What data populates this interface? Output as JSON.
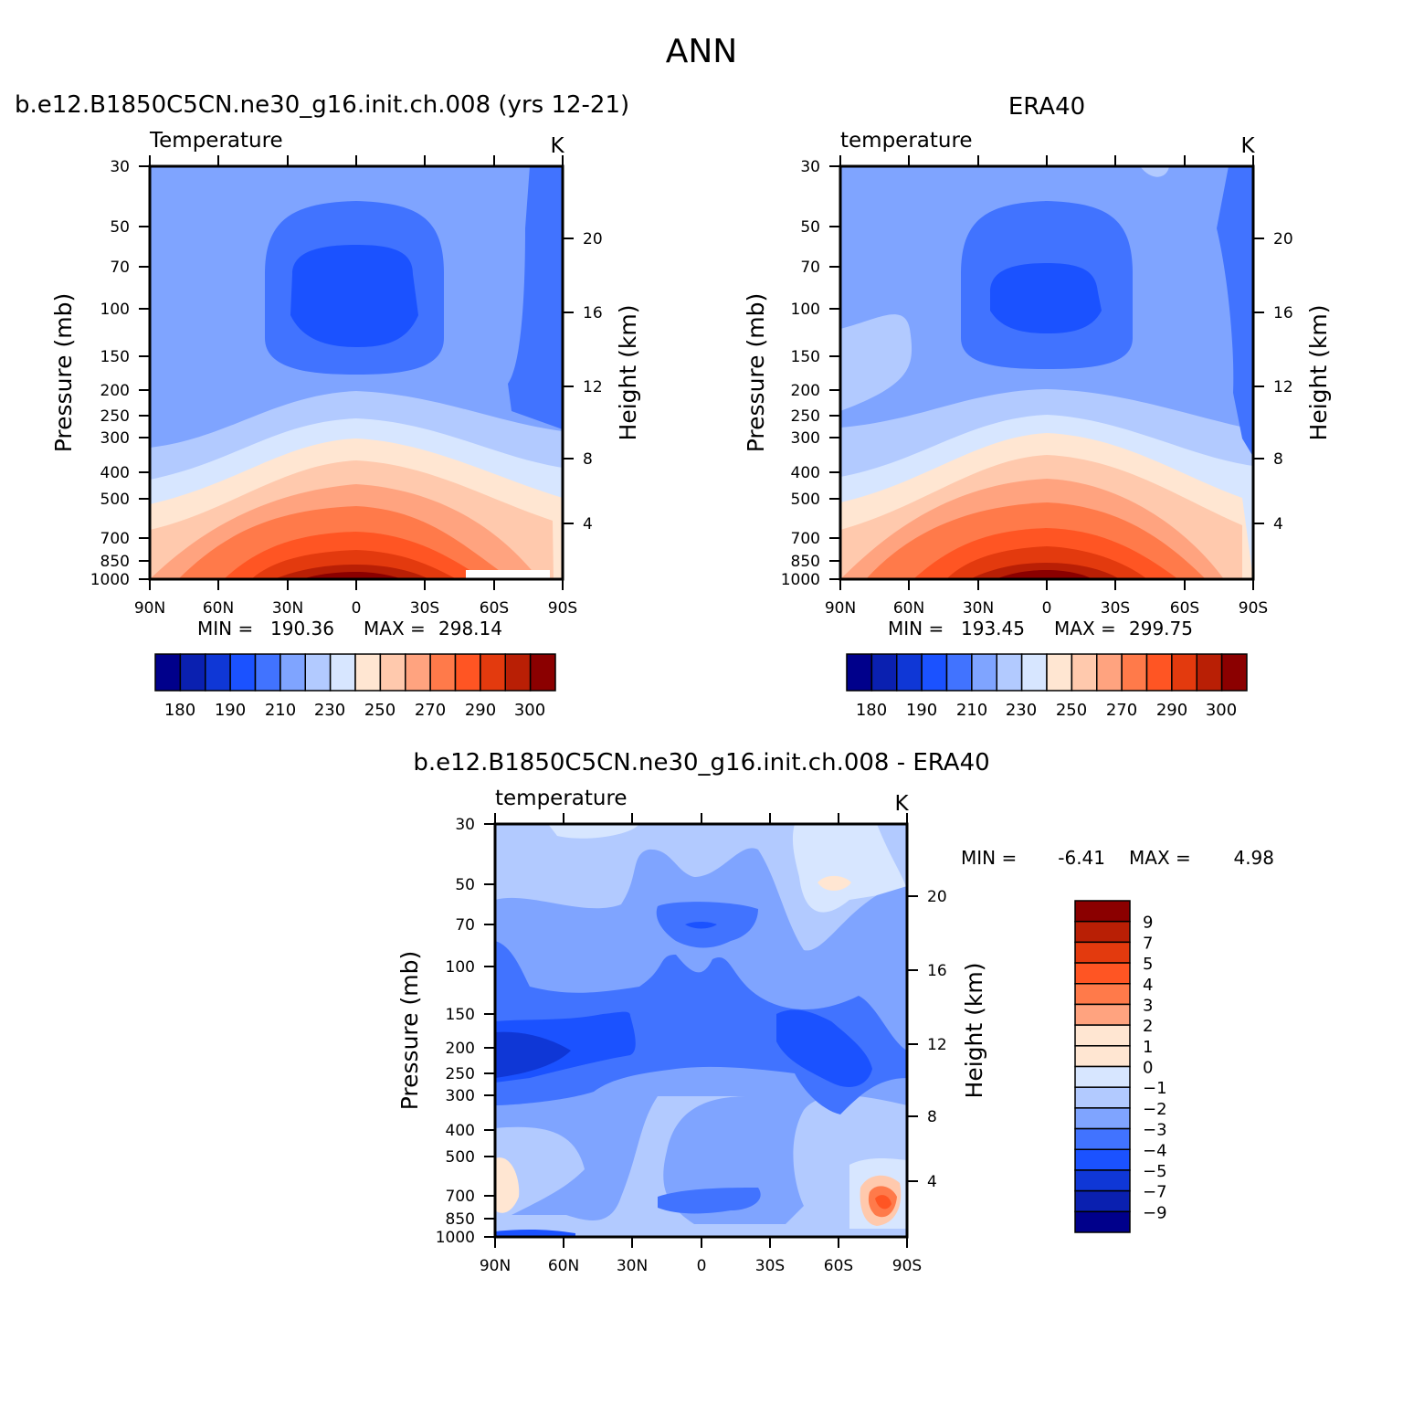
{
  "figure": {
    "title": "ANN"
  },
  "chart_data": [
    {
      "type": "heatmap",
      "title": "b.e12.B1850C5CN.ne30_g16.init.ch.008 (yrs 12-21)",
      "variable_label": "Temperature",
      "units": "K",
      "ylabel": "Pressure (mb)",
      "y2label": "Height (km)",
      "x_ticks": [
        "90N",
        "60N",
        "30N",
        "0",
        "30S",
        "60S",
        "90S"
      ],
      "y_ticks": [
        "30",
        "50",
        "70",
        "100",
        "150",
        "200",
        "250",
        "300",
        "400",
        "500",
        "700",
        "850",
        "1000"
      ],
      "y2_ticks": [
        "20",
        "16",
        "12",
        "8",
        "4"
      ],
      "stats": {
        "min_label": "MIN =",
        "min": "190.36",
        "max_label": "MAX =",
        "max": "298.14"
      },
      "colorbar": {
        "colors": [
          "#00008b",
          "#0a20b0",
          "#0f37d6",
          "#1b52ff",
          "#4173ff",
          "#7fa4ff",
          "#b2caff",
          "#d7e6ff",
          "#ffe6d2",
          "#ffc9ad",
          "#ffa37f",
          "#ff7a4a",
          "#ff5523",
          "#e33a0e",
          "#b91f05",
          "#8b0000"
        ],
        "labels": [
          "180",
          "190",
          "210",
          "230",
          "250",
          "270",
          "290",
          "300"
        ]
      }
    },
    {
      "type": "heatmap",
      "title": "ERA40",
      "variable_label": "temperature",
      "units": "K",
      "ylabel": "Pressure (mb)",
      "y2label": "Height (km)",
      "x_ticks": [
        "90N",
        "60N",
        "30N",
        "0",
        "30S",
        "60S",
        "90S"
      ],
      "y_ticks": [
        "30",
        "50",
        "70",
        "100",
        "150",
        "200",
        "250",
        "300",
        "400",
        "500",
        "700",
        "850",
        "1000"
      ],
      "y2_ticks": [
        "20",
        "16",
        "12",
        "8",
        "4"
      ],
      "stats": {
        "min_label": "MIN =",
        "min": "193.45",
        "max_label": "MAX =",
        "max": "299.75"
      },
      "colorbar": {
        "colors": [
          "#00008b",
          "#0a20b0",
          "#0f37d6",
          "#1b52ff",
          "#4173ff",
          "#7fa4ff",
          "#b2caff",
          "#d7e6ff",
          "#ffe6d2",
          "#ffc9ad",
          "#ffa37f",
          "#ff7a4a",
          "#ff5523",
          "#e33a0e",
          "#b91f05",
          "#8b0000"
        ],
        "labels": [
          "180",
          "190",
          "210",
          "230",
          "250",
          "270",
          "290",
          "300"
        ]
      }
    },
    {
      "type": "heatmap",
      "title": "b.e12.B1850C5CN.ne30_g16.init.ch.008 - ERA40",
      "variable_label": "temperature",
      "units": "K",
      "ylabel": "Pressure (mb)",
      "y2label": "Height (km)",
      "x_ticks": [
        "90N",
        "60N",
        "30N",
        "0",
        "30S",
        "60S",
        "90S"
      ],
      "y_ticks": [
        "30",
        "50",
        "70",
        "100",
        "150",
        "200",
        "250",
        "300",
        "400",
        "500",
        "700",
        "850",
        "1000"
      ],
      "y2_ticks": [
        "20",
        "16",
        "12",
        "8",
        "4"
      ],
      "stats": {
        "min_label": "MIN =",
        "min": "-6.41",
        "max_label": "MAX =",
        "max": "4.98"
      },
      "colorbar": {
        "colors": [
          "#8b0000",
          "#b91f05",
          "#e33a0e",
          "#ff5523",
          "#ff7a4a",
          "#ffa37f",
          "#ffe6d2",
          "#ffe6d2",
          "#d7e6ff",
          "#b2caff",
          "#7fa4ff",
          "#4173ff",
          "#1b52ff",
          "#0f37d6",
          "#0a20b0",
          "#00008b"
        ],
        "labels": [
          "9",
          "7",
          "5",
          "4",
          "3",
          "2",
          "1",
          "0",
          "-1",
          "-2",
          "-3",
          "-4",
          "-5",
          "-7",
          "-9"
        ]
      }
    }
  ]
}
